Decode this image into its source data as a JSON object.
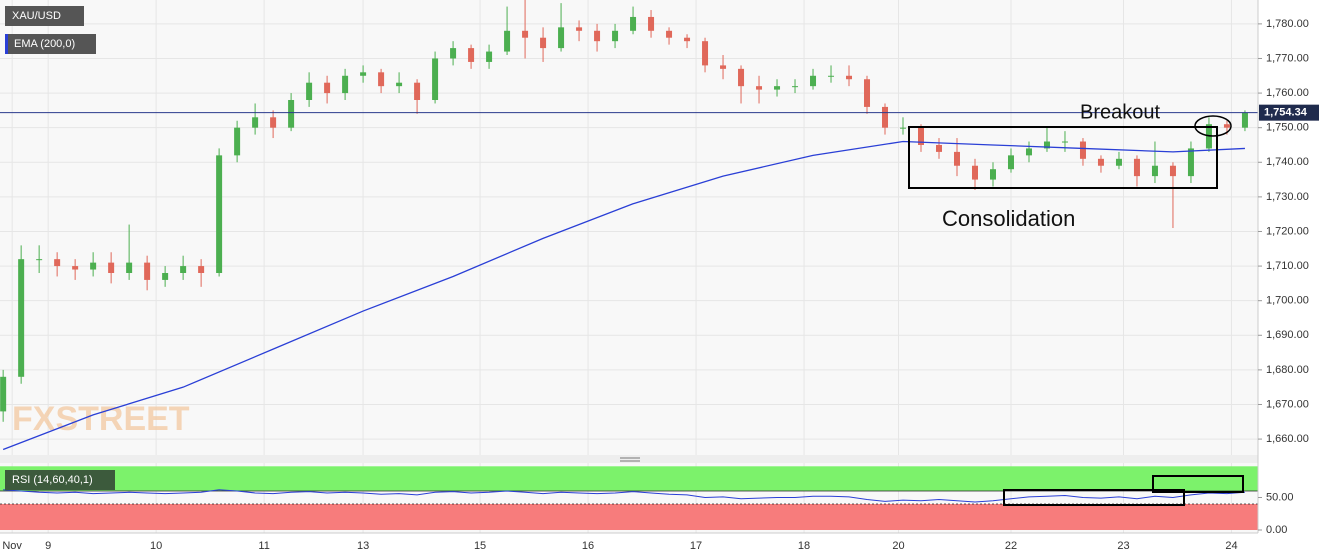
{
  "chart_data": [
    {
      "type": "candlestick",
      "watermark": "FXSTREET",
      "annotations": [
        "Breakout",
        "Consolidation"
      ],
      "grid": true,
      "xlim": [
        -10.7,
        268.9
      ],
      "ylim": [
        1655.4,
        1786.9
      ],
      "xticks": [
        {
          "value": -8,
          "label": "Nov"
        },
        {
          "value": 0,
          "label": "9"
        },
        {
          "value": 24,
          "label": "10"
        },
        {
          "value": 48,
          "label": "11"
        },
        {
          "value": 70,
          "label": "13"
        },
        {
          "value": 96,
          "label": "15"
        },
        {
          "value": 120,
          "label": "16"
        },
        {
          "value": 144,
          "label": "17"
        },
        {
          "value": 168,
          "label": "18"
        },
        {
          "value": 189,
          "label": "20"
        },
        {
          "value": 214,
          "label": "22"
        },
        {
          "value": 239,
          "label": "23"
        },
        {
          "value": 263,
          "label": "24"
        }
      ],
      "yticks": [
        {
          "value": 1660,
          "label": "1,660.00"
        },
        {
          "value": 1670,
          "label": "1,670.00"
        },
        {
          "value": 1680,
          "label": "1,680.00"
        },
        {
          "value": 1690,
          "label": "1,690.00"
        },
        {
          "value": 1700,
          "label": "1,700.00"
        },
        {
          "value": 1710,
          "label": "1,710.00"
        },
        {
          "value": 1720,
          "label": "1,720.00"
        },
        {
          "value": 1730,
          "label": "1,730.00"
        },
        {
          "value": 1740,
          "label": "1,740.00"
        },
        {
          "value": 1750,
          "label": "1,750.00"
        },
        {
          "value": 1760,
          "label": "1,760.00"
        },
        {
          "value": 1770,
          "label": "1,770.00"
        },
        {
          "value": 1780,
          "label": "1,780.00"
        }
      ],
      "last_price": {
        "value": 1754.34,
        "label": "1,754.34"
      },
      "series": [
        {
          "name": "XAU/USD",
          "up_color": "#4caf50",
          "down_color": "#e0685a",
          "x": [
            -10,
            -6,
            -2,
            2,
            6,
            10,
            14,
            18,
            22,
            26,
            30,
            34,
            38,
            42,
            46,
            50,
            54,
            58,
            62,
            66,
            70,
            74,
            78,
            82,
            86,
            90,
            94,
            98,
            102,
            106,
            110,
            114,
            118,
            122,
            126,
            130,
            134,
            138,
            142,
            146,
            150,
            154,
            158,
            162,
            166,
            170,
            174,
            178,
            182,
            186,
            190,
            194,
            198,
            202,
            206,
            210,
            214,
            218,
            222,
            226,
            230,
            234,
            238,
            242,
            246,
            250,
            254,
            258,
            262,
            266
          ],
          "ohlc": [
            [
              1668,
              1680,
              1665,
              1678
            ],
            [
              1678,
              1716,
              1676,
              1712
            ],
            [
              1712,
              1716,
              1708,
              1712
            ],
            [
              1712,
              1714,
              1707,
              1710
            ],
            [
              1710,
              1712,
              1706,
              1709
            ],
            [
              1709,
              1714,
              1707,
              1711
            ],
            [
              1711,
              1714,
              1705,
              1708
            ],
            [
              1708,
              1722,
              1706,
              1711
            ],
            [
              1711,
              1713,
              1703,
              1706
            ],
            [
              1706,
              1710,
              1704,
              1708
            ],
            [
              1708,
              1713,
              1706,
              1710
            ],
            [
              1710,
              1712,
              1704,
              1708
            ],
            [
              1708,
              1744,
              1707,
              1742
            ],
            [
              1742,
              1752,
              1740,
              1750
            ],
            [
              1750,
              1757,
              1748,
              1753
            ],
            [
              1753,
              1755,
              1747,
              1750
            ],
            [
              1750,
              1760,
              1749,
              1758
            ],
            [
              1758,
              1766,
              1756,
              1763
            ],
            [
              1763,
              1765,
              1757,
              1760
            ],
            [
              1760,
              1767,
              1758,
              1765
            ],
            [
              1765,
              1768,
              1763,
              1766
            ],
            [
              1766,
              1767,
              1760,
              1762
            ],
            [
              1762,
              1766,
              1760,
              1763
            ],
            [
              1763,
              1764,
              1754,
              1758
            ],
            [
              1758,
              1772,
              1757,
              1770
            ],
            [
              1770,
              1775,
              1768,
              1773
            ],
            [
              1773,
              1774,
              1767,
              1769
            ],
            [
              1769,
              1774,
              1767,
              1772
            ],
            [
              1772,
              1785,
              1771,
              1778
            ],
            [
              1778,
              1787,
              1770,
              1776
            ],
            [
              1776,
              1779,
              1769,
              1773
            ],
            [
              1773,
              1786,
              1772,
              1779
            ],
            [
              1779,
              1781,
              1775,
              1778
            ],
            [
              1778,
              1780,
              1772,
              1775
            ],
            [
              1775,
              1780,
              1773,
              1778
            ],
            [
              1778,
              1785,
              1777,
              1782
            ],
            [
              1782,
              1784,
              1776,
              1778
            ],
            [
              1778,
              1779,
              1774,
              1776
            ],
            [
              1776,
              1777,
              1773,
              1775
            ],
            [
              1775,
              1776,
              1766,
              1768
            ],
            [
              1768,
              1771,
              1764,
              1767
            ],
            [
              1767,
              1768,
              1757,
              1762
            ],
            [
              1762,
              1765,
              1757,
              1761
            ],
            [
              1761,
              1764,
              1759,
              1762
            ],
            [
              1762,
              1764,
              1760,
              1762
            ],
            [
              1762,
              1767,
              1761,
              1765
            ],
            [
              1765,
              1768,
              1763,
              1765
            ],
            [
              1765,
              1768,
              1762,
              1764
            ],
            [
              1764,
              1765,
              1754,
              1756
            ],
            [
              1756,
              1757,
              1748,
              1750
            ],
            [
              1750,
              1753,
              1748,
              1750
            ],
            [
              1750,
              1751,
              1743,
              1745
            ],
            [
              1745,
              1747,
              1741,
              1743
            ],
            [
              1743,
              1747,
              1736,
              1739
            ],
            [
              1739,
              1741,
              1732,
              1735
            ],
            [
              1735,
              1740,
              1733,
              1738
            ],
            [
              1738,
              1744,
              1737,
              1742
            ],
            [
              1742,
              1746,
              1740,
              1744
            ],
            [
              1744,
              1750,
              1743,
              1746
            ],
            [
              1746,
              1749,
              1743,
              1746
            ],
            [
              1746,
              1747,
              1739,
              1741
            ],
            [
              1741,
              1742,
              1737,
              1739
            ],
            [
              1739,
              1743,
              1738,
              1741
            ],
            [
              1741,
              1742,
              1733,
              1736
            ],
            [
              1736,
              1746,
              1734,
              1739
            ],
            [
              1739,
              1740,
              1721,
              1736
            ],
            [
              1736,
              1746,
              1734,
              1744
            ],
            [
              1744,
              1753,
              1743,
              1751
            ],
            [
              1751,
              1752,
              1748,
              1750
            ],
            [
              1750,
              1755,
              1749,
              1754.34
            ]
          ]
        },
        {
          "name": "EMA (200,0)",
          "type": "line",
          "color": "#2a3fd6",
          "x": [
            -10,
            10,
            30,
            50,
            70,
            90,
            110,
            130,
            150,
            170,
            190,
            210,
            230,
            250,
            266
          ],
          "values": [
            1657,
            1667,
            1675,
            1686,
            1697,
            1707,
            1718,
            1728,
            1736,
            1742,
            1746,
            1745,
            1744,
            1743,
            1744
          ]
        }
      ]
    },
    {
      "type": "rsi",
      "xlim": [
        -10.7,
        268.9
      ],
      "ylim": [
        0,
        98
      ],
      "yticks": [
        {
          "value": 50,
          "label": "50.00"
        },
        {
          "value": 0,
          "label": "0.00"
        }
      ],
      "upper": 60,
      "lower": 40,
      "upper_color": "#7cf26b",
      "lower_color": "#f77c7c",
      "series": [
        {
          "name": "RSI (14,60,40,1)",
          "color": "#2a3fd6",
          "x": [
            -10,
            -6,
            -2,
            2,
            6,
            10,
            14,
            18,
            22,
            26,
            30,
            34,
            38,
            42,
            46,
            50,
            54,
            58,
            62,
            66,
            70,
            74,
            78,
            82,
            86,
            90,
            94,
            98,
            102,
            106,
            110,
            114,
            118,
            122,
            126,
            130,
            134,
            138,
            142,
            146,
            150,
            154,
            158,
            162,
            166,
            170,
            174,
            178,
            182,
            186,
            190,
            194,
            198,
            202,
            206,
            210,
            214,
            218,
            222,
            226,
            230,
            234,
            238,
            242,
            246,
            250,
            254,
            258,
            262,
            266
          ],
          "values": [
            62,
            60,
            58,
            57,
            58,
            56,
            57,
            58,
            57,
            56,
            57,
            58,
            62,
            60,
            57,
            56,
            58,
            59,
            57,
            58,
            57,
            55,
            56,
            54,
            58,
            59,
            57,
            58,
            60,
            58,
            56,
            58,
            57,
            56,
            57,
            59,
            57,
            55,
            54,
            50,
            51,
            48,
            49,
            50,
            50,
            52,
            52,
            51,
            47,
            44,
            46,
            45,
            47,
            45,
            43,
            45,
            48,
            51,
            52,
            53,
            50,
            49,
            51,
            48,
            52,
            50,
            54,
            57,
            56,
            58
          ]
        }
      ]
    }
  ]
}
